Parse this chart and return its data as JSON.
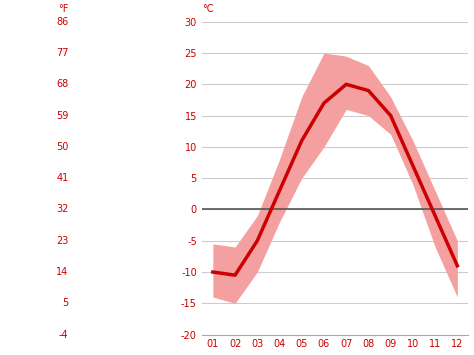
{
  "months": [
    1,
    2,
    3,
    4,
    5,
    6,
    7,
    8,
    9,
    10,
    11,
    12
  ],
  "month_labels": [
    "01",
    "02",
    "03",
    "04",
    "05",
    "06",
    "07",
    "08",
    "09",
    "10",
    "11",
    "12"
  ],
  "mean_temp_c": [
    -10,
    -10.5,
    -5,
    3,
    11,
    17,
    20,
    19,
    15,
    7,
    -1,
    -9
  ],
  "upper_band_c": [
    -5.5,
    -6,
    -1,
    8,
    18,
    25,
    24.5,
    23,
    18,
    11,
    3,
    -5
  ],
  "lower_band_c": [
    -14,
    -15,
    -10,
    -2,
    5,
    10,
    16,
    15,
    12,
    4,
    -6,
    -14
  ],
  "line_color": "#cc0000",
  "band_color": "#f4a0a0",
  "zero_line_color": "#555555",
  "grid_color": "#cccccc",
  "label_color": "#cc0000",
  "background_color": "#ffffff",
  "ylim_c": [
    -20,
    30
  ],
  "yticks_c": [
    -20,
    -15,
    -10,
    -5,
    0,
    5,
    10,
    15,
    20,
    25,
    30
  ],
  "yticks_f": [
    -4,
    5,
    14,
    23,
    32,
    41,
    50,
    59,
    68,
    77,
    86
  ],
  "figsize": [
    4.74,
    3.55
  ],
  "dpi": 100
}
